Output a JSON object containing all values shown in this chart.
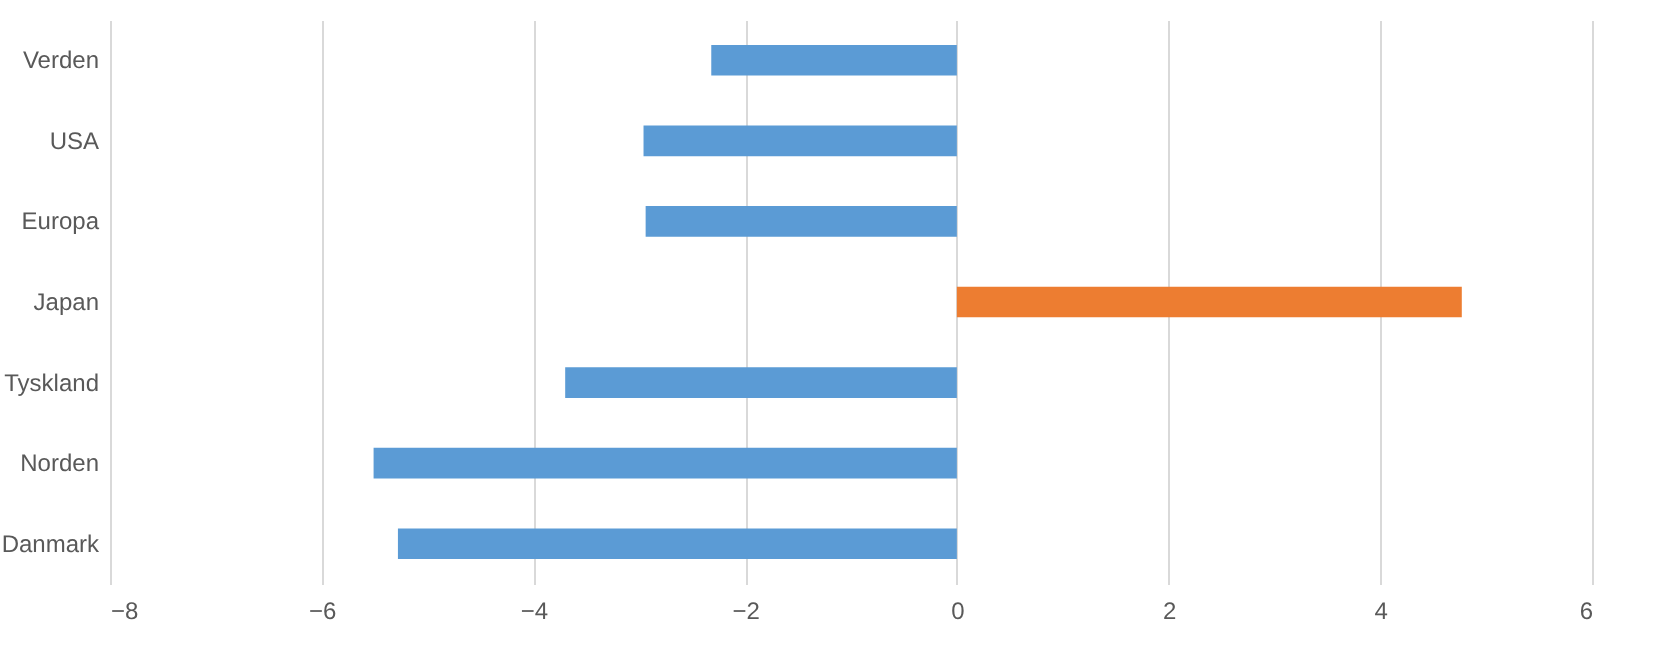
{
  "chart_data": {
    "type": "bar",
    "orientation": "horizontal",
    "categories": [
      "Verden",
      "USA",
      "Europa",
      "Japan",
      "Tyskland",
      "Norden",
      "Danmark"
    ],
    "values": [
      -2.32,
      -2.96,
      -2.94,
      4.77,
      -3.7,
      -5.51,
      -5.28
    ],
    "colors": [
      "#5b9bd5",
      "#5b9bd5",
      "#5b9bd5",
      "#ed7d31",
      "#5b9bd5",
      "#5b9bd5",
      "#5b9bd5"
    ],
    "xlim": [
      -8,
      6
    ],
    "xticks": [
      -8,
      -6,
      -4,
      -2,
      0,
      2,
      4,
      6
    ],
    "grid": "x"
  }
}
